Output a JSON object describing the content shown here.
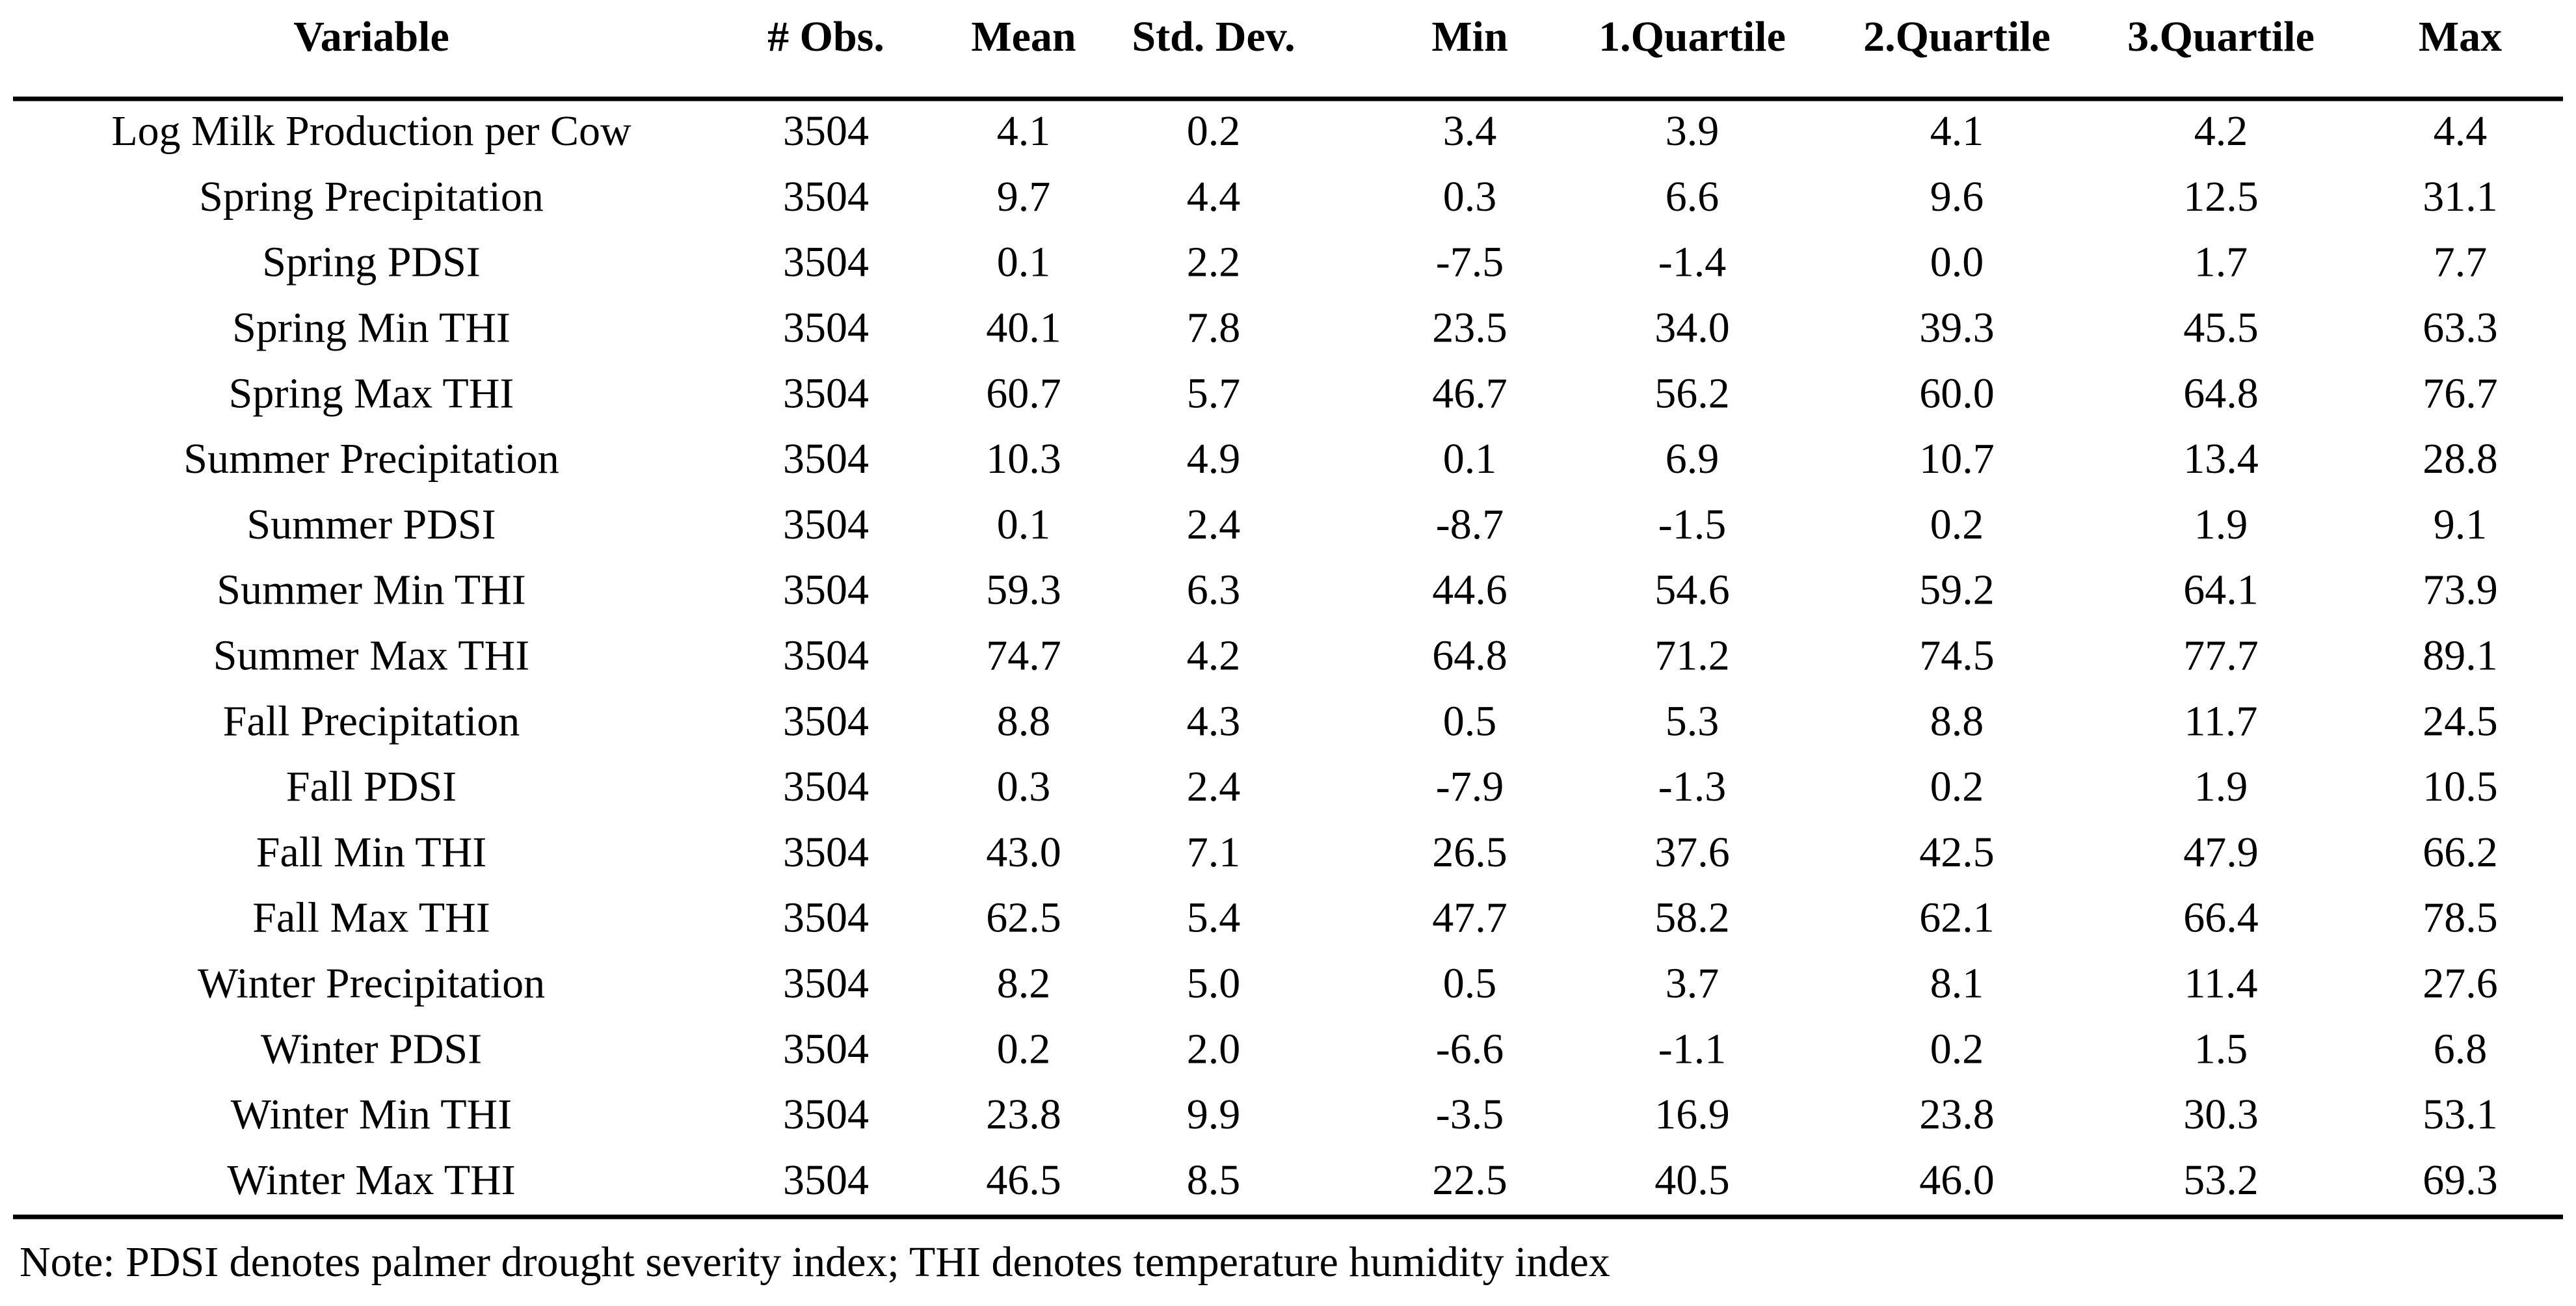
{
  "table": {
    "header": [
      "Variable",
      "# Obs.",
      "Mean",
      "Std. Dev.",
      "Min",
      "1.Quartile",
      "2.Quartile",
      "3.Quartile",
      "Max"
    ],
    "rows": [
      [
        "Log Milk Production per Cow",
        "3504",
        "4.1",
        "0.2",
        "3.4",
        "3.9",
        "4.1",
        "4.2",
        "4.4"
      ],
      [
        "Spring Precipitation",
        "3504",
        "9.7",
        "4.4",
        "0.3",
        "6.6",
        "9.6",
        "12.5",
        "31.1"
      ],
      [
        "Spring PDSI",
        "3504",
        "0.1",
        "2.2",
        "-7.5",
        "-1.4",
        "0.0",
        "1.7",
        "7.7"
      ],
      [
        "Spring Min THI",
        "3504",
        "40.1",
        "7.8",
        "23.5",
        "34.0",
        "39.3",
        "45.5",
        "63.3"
      ],
      [
        "Spring Max THI",
        "3504",
        "60.7",
        "5.7",
        "46.7",
        "56.2",
        "60.0",
        "64.8",
        "76.7"
      ],
      [
        "Summer Precipitation",
        "3504",
        "10.3",
        "4.9",
        "0.1",
        "6.9",
        "10.7",
        "13.4",
        "28.8"
      ],
      [
        "Summer PDSI",
        "3504",
        "0.1",
        "2.4",
        "-8.7",
        "-1.5",
        "0.2",
        "1.9",
        "9.1"
      ],
      [
        "Summer Min THI",
        "3504",
        "59.3",
        "6.3",
        "44.6",
        "54.6",
        "59.2",
        "64.1",
        "73.9"
      ],
      [
        "Summer Max THI",
        "3504",
        "74.7",
        "4.2",
        "64.8",
        "71.2",
        "74.5",
        "77.7",
        "89.1"
      ],
      [
        "Fall Precipitation",
        "3504",
        "8.8",
        "4.3",
        "0.5",
        "5.3",
        "8.8",
        "11.7",
        "24.5"
      ],
      [
        "Fall PDSI",
        "3504",
        "0.3",
        "2.4",
        "-7.9",
        "-1.3",
        "0.2",
        "1.9",
        "10.5"
      ],
      [
        "Fall Min THI",
        "3504",
        "43.0",
        "7.1",
        "26.5",
        "37.6",
        "42.5",
        "47.9",
        "66.2"
      ],
      [
        "Fall Max THI",
        "3504",
        "62.5",
        "5.4",
        "47.7",
        "58.2",
        "62.1",
        "66.4",
        "78.5"
      ],
      [
        "Winter Precipitation",
        "3504",
        "8.2",
        "5.0",
        "0.5",
        "3.7",
        "8.1",
        "11.4",
        "27.6"
      ],
      [
        "Winter PDSI",
        "3504",
        "0.2",
        "2.0",
        "-6.6",
        "-1.1",
        "0.2",
        "1.5",
        "6.8"
      ],
      [
        "Winter Min THI",
        "3504",
        "23.8",
        "9.9",
        "-3.5",
        "16.9",
        "23.8",
        "30.3",
        "53.1"
      ],
      [
        "Winter Max THI",
        "3504",
        "46.5",
        "8.5",
        "22.5",
        "40.5",
        "46.0",
        "53.2",
        "69.3"
      ]
    ]
  },
  "note": "Note: PDSI denotes palmer drought severity index; THI denotes temperature humidity index"
}
